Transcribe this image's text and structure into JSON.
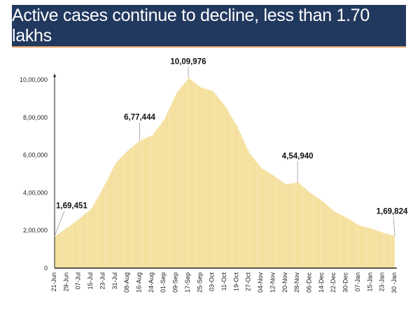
{
  "title": "Active cases continue to decline, less than 1.70 lakhs",
  "chart_data": {
    "type": "bar",
    "title": "Active cases continue to decline, less than 1.70 lakhs",
    "xlabel": "",
    "ylabel": "",
    "ylim": [
      0,
      1000000
    ],
    "yticks": [
      0,
      200000,
      400000,
      600000,
      800000,
      1000000
    ],
    "ytick_labels": [
      "0",
      "2,00,000",
      "4,00,000",
      "6,00,000",
      "8,00,000",
      "10,00,000"
    ],
    "grid": false,
    "color": "#f1d67e",
    "categories": [
      "21-Jun",
      "29-Jun",
      "07-Jul",
      "15-Jul",
      "23-Jul",
      "31-Jul",
      "08-Aug",
      "16-Aug",
      "24-Aug",
      "01-Sep",
      "09-Sep",
      "17-Sep",
      "25-Sep",
      "03-Oct",
      "11-Oct",
      "19-Oct",
      "27-Oct",
      "04-Nov",
      "12-Nov",
      "20-Nov",
      "28-Nov",
      "06-Dec",
      "14-Dec",
      "22-Dec",
      "30-Dec",
      "07-Jan",
      "15-Jan",
      "23-Jan",
      "30 -Jan"
    ],
    "values": [
      169451,
      215000,
      262000,
      318000,
      430000,
      560000,
      625000,
      677444,
      705000,
      790000,
      930000,
      1009976,
      960000,
      940000,
      860000,
      750000,
      610000,
      530000,
      490000,
      445000,
      454940,
      400000,
      355000,
      300000,
      268000,
      228000,
      210000,
      188000,
      169824
    ],
    "annotations": [
      {
        "label": "1,69,451",
        "category": "21-Jun",
        "value": 169451
      },
      {
        "label": "6,77,444",
        "category": "16-Aug",
        "value": 677444
      },
      {
        "label": "10,09,976",
        "category": "17-Sep",
        "value": 1009976
      },
      {
        "label": "4,54,940",
        "category": "28-Nov",
        "value": 454940
      },
      {
        "label": "1,69,824",
        "category": "30 -Jan",
        "value": 169824
      }
    ]
  }
}
